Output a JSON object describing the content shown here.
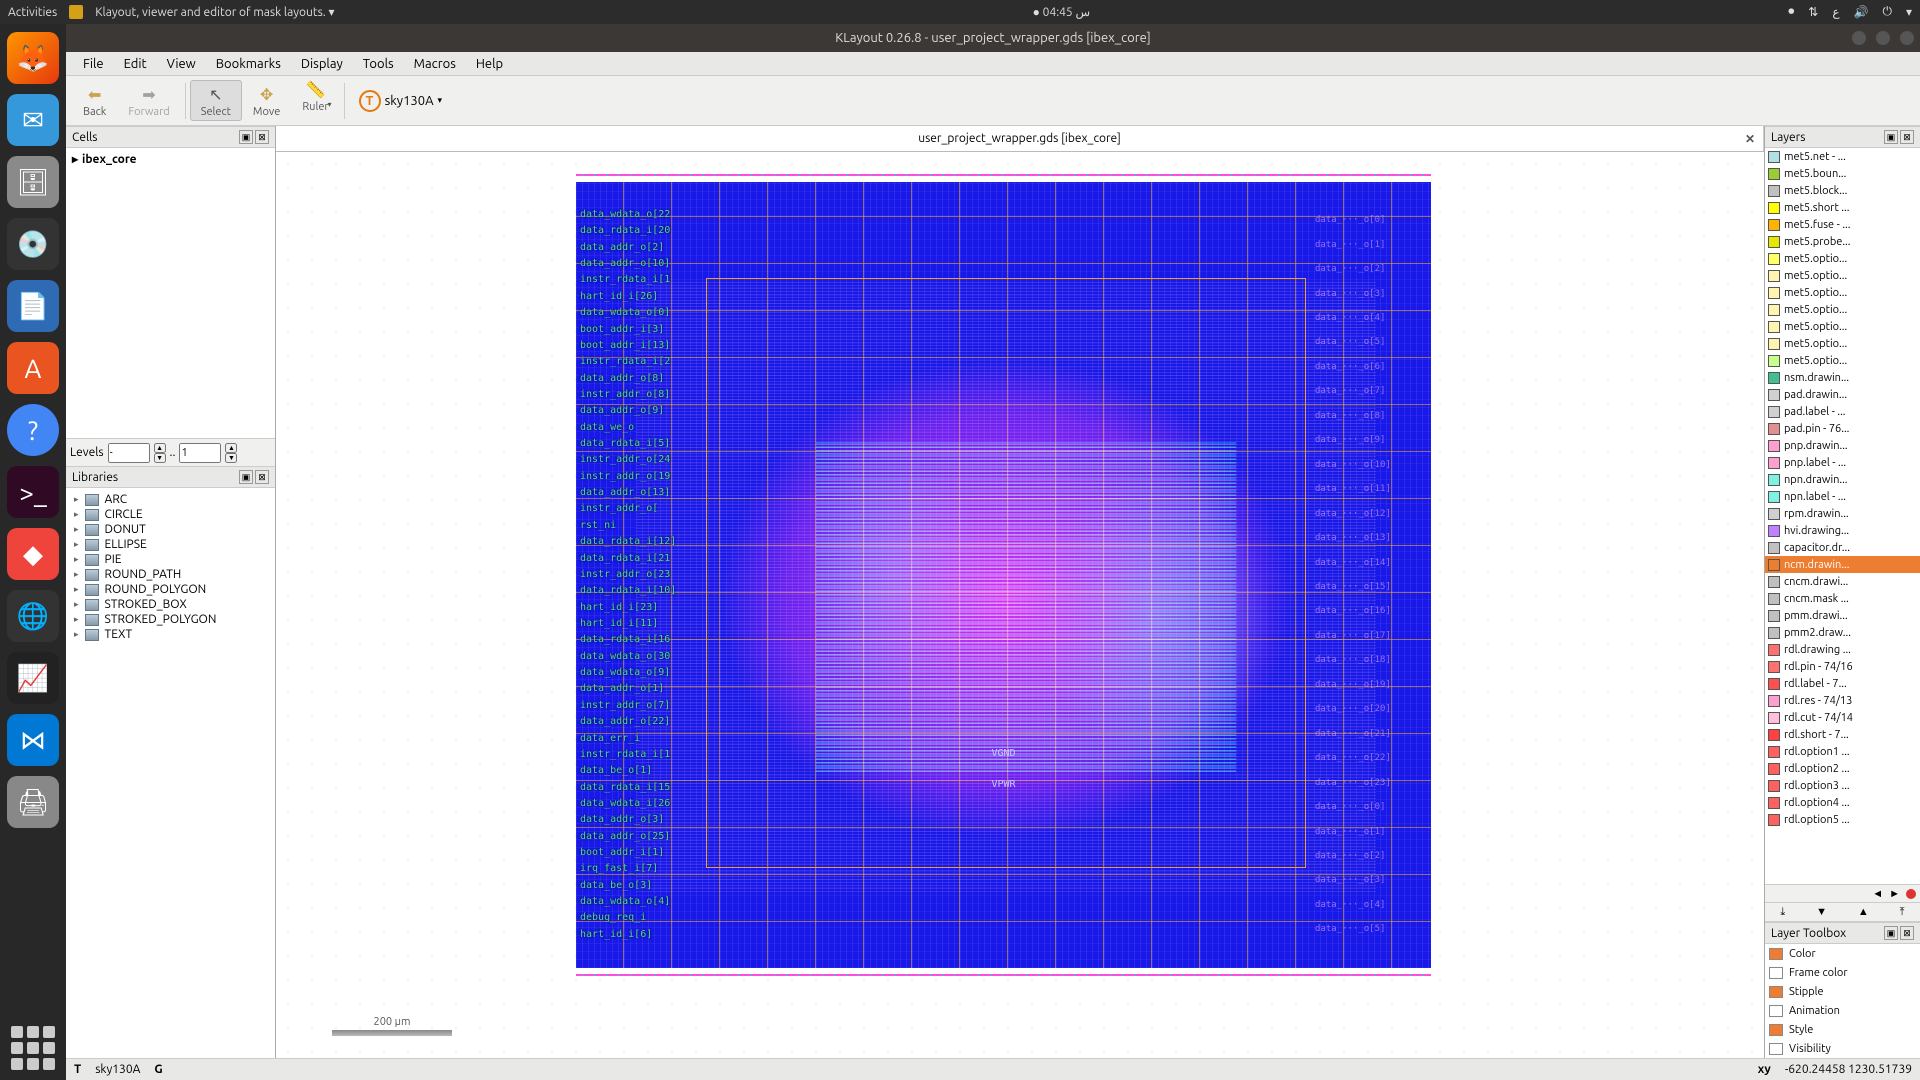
{
  "gnome": {
    "activities": "Activities",
    "app_name": "Klayout, viewer and editor of mask layouts.",
    "clock": "س 04:45"
  },
  "titlebar": "KLayout 0.26.8 - user_project_wrapper.gds [ibex_core]",
  "menubar": [
    "File",
    "Edit",
    "View",
    "Bookmarks",
    "Display",
    "Tools",
    "Macros",
    "Help"
  ],
  "toolbar": {
    "back": "Back",
    "forward": "Forward",
    "select": "Select",
    "move": "Move",
    "ruler": "Ruler",
    "tech": "sky130A"
  },
  "panels": {
    "cells_title": "Cells",
    "cell": "ibex_core",
    "levels_label": "Levels",
    "level_a": "-",
    "level_dots": "..",
    "level_b": "1",
    "libs_title": "Libraries",
    "libs": [
      "ARC",
      "CIRCLE",
      "DONUT",
      "ELLIPSE",
      "PIE",
      "ROUND_PATH",
      "ROUND_POLYGON",
      "STROKED_BOX",
      "STROKED_POLYGON",
      "TEXT"
    ]
  },
  "tab": {
    "label": "user_project_wrapper.gds [ibex_core]"
  },
  "canvas": {
    "scale_label": "200  µm",
    "vgnd": "VGND",
    "vpwr": "VPWR",
    "pin_labels": [
      "data_wdata_o[22",
      "data_rdata_i[20",
      "data_addr_o[2]",
      "data_addr_o[10]",
      "instr_rdata_i[1",
      "hart_id_i[26]",
      "data_wdata_o[0]",
      "boot_addr_i[3]",
      "boot_addr_i[13]",
      "instr_rdata_i[2",
      "data_addr_o[8]",
      "instr_addr_o[8]",
      "data_addr_o[9]",
      "data_we_o",
      "data_rdata_i[5]",
      "instr_addr_o[24",
      "instr_addr_o[19",
      "data_addr_o[13]",
      "instr_addr_o[",
      "rst_ni",
      "data_rdata_i[12]",
      "data_rdata_i[21",
      "instr_addr_o[23",
      "data_rdata_i[10]",
      "hart_id_i[23]",
      "hart_id_i[11]",
      "data_rdata_i[16",
      "data_wdata_o[30",
      "data_wdata_o[9]",
      "data_addr_o[1]",
      "instr_addr_o[7]",
      "data_addr_o[22]",
      "data_err_i",
      "instr_rdata_i[1",
      "data_be_o[1]",
      "data_rdata_i[15",
      "data_wdata_i[26",
      "data_addr_o[3]",
      "data_addr_o[25]",
      "boot_addr_i[1]",
      "irq_fast_i[7]",
      "data_be_o[3]",
      "data_wdata_o[4]",
      "debug_req_i",
      "hart_id_i[6]"
    ]
  },
  "layers": {
    "title": "Layers",
    "items": [
      {
        "name": "met5.net - ...",
        "c": "#b0e0e6"
      },
      {
        "name": "met5.boun...",
        "c": "#9acd32"
      },
      {
        "name": "met5.block...",
        "c": "#c0c0c0"
      },
      {
        "name": "met5.short ...",
        "c": "#ffff00"
      },
      {
        "name": "met5.fuse - ...",
        "c": "#ffb300"
      },
      {
        "name": "met5.probe...",
        "c": "#e6e600"
      },
      {
        "name": "met5.optio...",
        "c": "#ffff66"
      },
      {
        "name": "met5.optio...",
        "c": "#fff4b0"
      },
      {
        "name": "met5.optio...",
        "c": "#fff4b0"
      },
      {
        "name": "met5.optio...",
        "c": "#fff4b0"
      },
      {
        "name": "met5.optio...",
        "c": "#fff4b0"
      },
      {
        "name": "met5.optio...",
        "c": "#fff4b0"
      },
      {
        "name": "met5.optio...",
        "c": "#c6ff8a"
      },
      {
        "name": "nsm.drawin...",
        "c": "#40c090"
      },
      {
        "name": "pad.drawin...",
        "c": "#d0d0d0"
      },
      {
        "name": "pad.label - ...",
        "c": "#d0d0d0"
      },
      {
        "name": "pad.pin - 76...",
        "c": "#e09090"
      },
      {
        "name": "pnp.drawin...",
        "c": "#ff9fcf"
      },
      {
        "name": "pnp.label - ...",
        "c": "#ff9fcf"
      },
      {
        "name": "npn.drawin...",
        "c": "#80f0e0"
      },
      {
        "name": "npn.label - ...",
        "c": "#80f0e0"
      },
      {
        "name": "rpm.drawin...",
        "c": "#d0d0d0"
      },
      {
        "name": "hvi.drawing...",
        "c": "#c080ff"
      },
      {
        "name": "capacitor.dr...",
        "c": "#c0c0c0"
      },
      {
        "name": "ncm.drawin...",
        "c": "#ed7d31",
        "sel": true
      },
      {
        "name": "cncm.drawi...",
        "c": "#c0c0c0"
      },
      {
        "name": "cncm.mask ...",
        "c": "#c0c0c0"
      },
      {
        "name": "pmm.drawi...",
        "c": "#c0c0c0"
      },
      {
        "name": "pmm2.draw...",
        "c": "#c0c0c0"
      },
      {
        "name": "rdl.drawing ...",
        "c": "#ff7070"
      },
      {
        "name": "rdl.pin - 74/16",
        "c": "#ff7070"
      },
      {
        "name": "rdl.label - 7...",
        "c": "#ff5050"
      },
      {
        "name": "rdl.res - 74/13",
        "c": "#ff9fcf"
      },
      {
        "name": "rdl.cut - 74/14",
        "c": "#ffc0e0"
      },
      {
        "name": "rdl.short - 7...",
        "c": "#ff4040"
      },
      {
        "name": "rdl.option1 ...",
        "c": "#ff6060"
      },
      {
        "name": "rdl.option2 ...",
        "c": "#ff6060"
      },
      {
        "name": "rdl.option3 ...",
        "c": "#ff6060"
      },
      {
        "name": "rdl.option4 ...",
        "c": "#ff6060"
      },
      {
        "name": "rdl.option5 ...",
        "c": "#ff6060"
      }
    ],
    "toolbox_title": "Layer Toolbox",
    "toolbox": [
      "Color",
      "Frame color",
      "Stipple",
      "Animation",
      "Style",
      "Visibility"
    ]
  },
  "status": {
    "t": "T",
    "tech": "sky130A",
    "g": "G",
    "xy_label": "xy",
    "xy": "-620.24458    1230.51739"
  }
}
